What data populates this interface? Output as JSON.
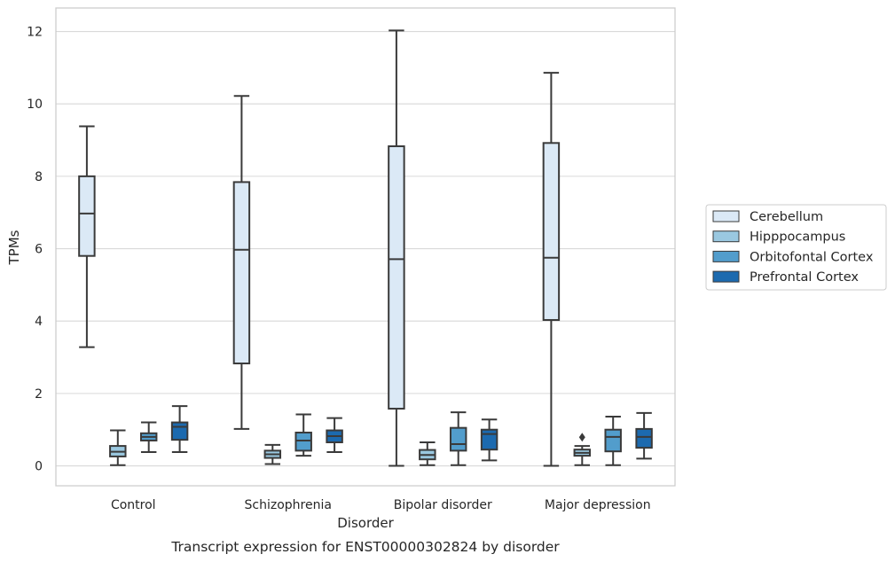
{
  "caption": "Transcript expression for ENST00000302824 by disorder",
  "chart_data": {
    "type": "box",
    "xlabel": "Disorder",
    "ylabel": "TPMs",
    "ylim": [
      -0.55,
      12.65
    ],
    "yticks": [
      0,
      2,
      4,
      6,
      8,
      10,
      12
    ],
    "grid": "horizontal",
    "legend_position": "right",
    "categories": [
      "Control",
      "Schizophrenia",
      "Bipolar disorder",
      "Major depression"
    ],
    "series": [
      {
        "name": "Cerebellum",
        "color": "#dbe9f6",
        "boxes": [
          {
            "whislo": 3.28,
            "q1": 5.8,
            "med": 6.97,
            "q3": 8.0,
            "whishi": 9.38,
            "fliers": []
          },
          {
            "whislo": 1.02,
            "q1": 2.83,
            "med": 5.97,
            "q3": 7.84,
            "whishi": 10.22,
            "fliers": []
          },
          {
            "whislo": 0.0,
            "q1": 1.58,
            "med": 5.71,
            "q3": 8.83,
            "whishi": 12.03,
            "fliers": []
          },
          {
            "whislo": 0.0,
            "q1": 4.03,
            "med": 5.75,
            "q3": 8.92,
            "whishi": 10.86,
            "fliers": []
          }
        ]
      },
      {
        "name": "Hipppocampus",
        "color": "#9ac8e0",
        "boxes": [
          {
            "whislo": 0.02,
            "q1": 0.26,
            "med": 0.39,
            "q3": 0.55,
            "whishi": 0.98,
            "fliers": []
          },
          {
            "whislo": 0.05,
            "q1": 0.22,
            "med": 0.32,
            "q3": 0.42,
            "whishi": 0.58,
            "fliers": []
          },
          {
            "whislo": 0.02,
            "q1": 0.18,
            "med": 0.3,
            "q3": 0.44,
            "whishi": 0.65,
            "fliers": []
          },
          {
            "whislo": 0.02,
            "q1": 0.28,
            "med": 0.36,
            "q3": 0.45,
            "whishi": 0.55,
            "fliers": [
              0.79
            ]
          }
        ]
      },
      {
        "name": "Orbitofontal Cortex",
        "color": "#529dcc",
        "boxes": [
          {
            "whislo": 0.38,
            "q1": 0.7,
            "med": 0.8,
            "q3": 0.9,
            "whishi": 1.2,
            "fliers": []
          },
          {
            "whislo": 0.28,
            "q1": 0.42,
            "med": 0.7,
            "q3": 0.92,
            "whishi": 1.42,
            "fliers": []
          },
          {
            "whislo": 0.02,
            "q1": 0.42,
            "med": 0.6,
            "q3": 1.05,
            "whishi": 1.48,
            "fliers": []
          },
          {
            "whislo": 0.02,
            "q1": 0.4,
            "med": 0.8,
            "q3": 1.0,
            "whishi": 1.36,
            "fliers": []
          }
        ]
      },
      {
        "name": "Prefrontal Cortex",
        "color": "#1c6aaf",
        "boxes": [
          {
            "whislo": 0.38,
            "q1": 0.72,
            "med": 1.08,
            "q3": 1.2,
            "whishi": 1.65,
            "fliers": []
          },
          {
            "whislo": 0.38,
            "q1": 0.65,
            "med": 0.82,
            "q3": 0.98,
            "whishi": 1.32,
            "fliers": []
          },
          {
            "whislo": 0.15,
            "q1": 0.45,
            "med": 0.88,
            "q3": 1.0,
            "whishi": 1.28,
            "fliers": []
          },
          {
            "whislo": 0.2,
            "q1": 0.5,
            "med": 0.8,
            "q3": 1.02,
            "whishi": 1.46,
            "fliers": []
          }
        ]
      }
    ]
  }
}
